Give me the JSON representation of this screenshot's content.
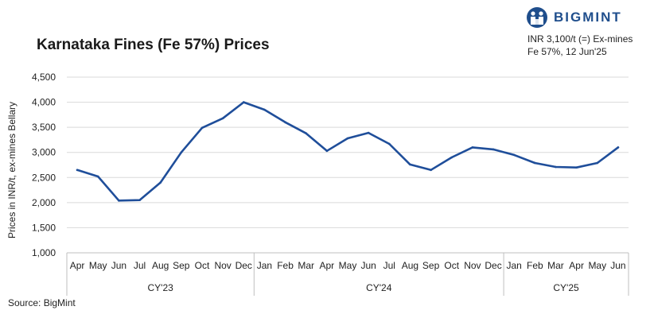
{
  "brand": {
    "name": "BIGMINT",
    "icon": "bigmint-logo-icon",
    "color": "#1f4e8c"
  },
  "note": {
    "line1": "INR 3,100/t (=) Ex-mines",
    "line2": "Fe 57%, 12 Jun'25"
  },
  "source": "Source: BigMint",
  "chart_data": {
    "type": "line",
    "title": "Karnataka Fines (Fe 57%) Prices",
    "ylabel": "Prices in INR/t, ex-mines Bellary",
    "xlabel": "",
    "ylim": [
      1000,
      4500
    ],
    "yticks": [
      1000,
      1500,
      2000,
      2500,
      3000,
      3500,
      4000,
      4500
    ],
    "ytick_labels": [
      "1,000",
      "1,500",
      "2,000",
      "2,500",
      "3,000",
      "3,500",
      "4,000",
      "4,500"
    ],
    "grid": true,
    "line_color": "#1f4e9a",
    "categories": [
      "Apr",
      "May",
      "Jun",
      "Jul",
      "Aug",
      "Sep",
      "Oct",
      "Nov",
      "Dec",
      "Jan",
      "Feb",
      "Mar",
      "Apr",
      "May",
      "Jun",
      "Jul",
      "Aug",
      "Sep",
      "Oct",
      "Nov",
      "Dec",
      "Jan",
      "Feb",
      "Mar",
      "Apr",
      "May",
      "Jun"
    ],
    "groups": [
      {
        "label": "CY'23",
        "count": 9
      },
      {
        "label": "CY'24",
        "count": 12
      },
      {
        "label": "CY'25",
        "count": 6
      }
    ],
    "series": [
      {
        "values": [
          2650,
          2520,
          2040,
          2050,
          2400,
          3000,
          3490,
          3680,
          4000,
          3850,
          3600,
          3380,
          3030,
          3280,
          3390,
          3170,
          2760,
          2650,
          2900,
          3100,
          3060,
          2950,
          2790,
          2710,
          2700,
          2790,
          3100
        ]
      }
    ]
  }
}
